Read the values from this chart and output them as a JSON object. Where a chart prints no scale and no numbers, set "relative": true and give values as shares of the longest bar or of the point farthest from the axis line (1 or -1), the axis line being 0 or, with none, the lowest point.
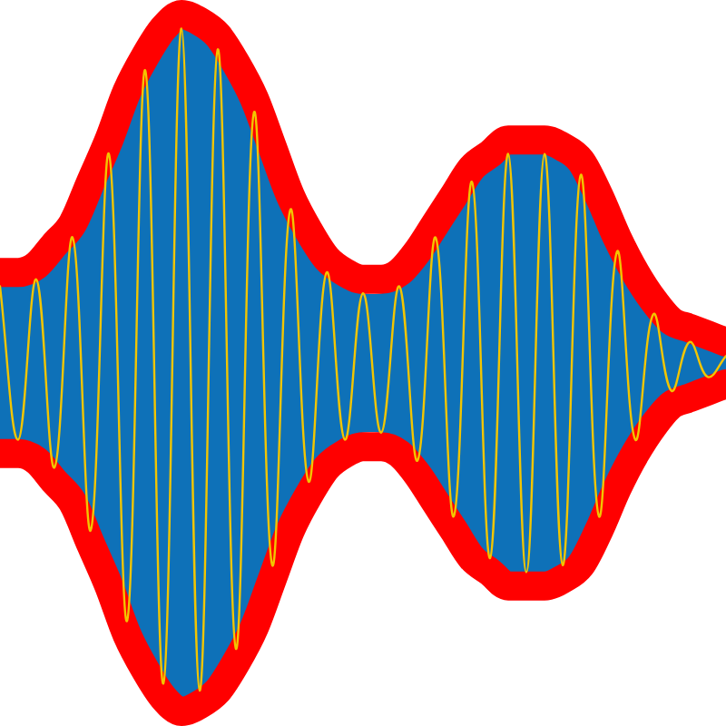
{
  "chart_data": {
    "type": "line",
    "relative": true,
    "categories": [
      null,
      null,
      null,
      null,
      null,
      null,
      null,
      null,
      null,
      null,
      null,
      null,
      null,
      null,
      null,
      null,
      null,
      null,
      null,
      null,
      null,
      null,
      null,
      null,
      null,
      null,
      null,
      null,
      null,
      null,
      null,
      null,
      null,
      null,
      null,
      null,
      null,
      null,
      null,
      null,
      null
    ],
    "series": [
      {
        "color": "#ff0000",
        "values": [
          0.63,
          0.63,
          0.64,
          0.67,
          0.7,
          0.76,
          0.82,
          0.89,
          0.94,
          0.98,
          1.0,
          0.99,
          0.97,
          0.93,
          0.88,
          0.81,
          0.74,
          0.69,
          0.65,
          0.63,
          0.62,
          0.62,
          0.63,
          0.66,
          0.7,
          0.74,
          0.78,
          0.8,
          0.82,
          0.82,
          0.82,
          0.81,
          0.79,
          0.74,
          0.68,
          0.63,
          0.59,
          0.56,
          0.55,
          0.54,
          0.53
        ]
      },
      {
        "color": "#ff0000",
        "values": [
          0.37,
          0.37,
          0.36,
          0.33,
          0.3,
          0.24,
          0.18,
          0.11,
          0.06,
          0.02,
          0.0,
          0.01,
          0.03,
          0.07,
          0.12,
          0.19,
          0.26,
          0.31,
          0.35,
          0.37,
          0.38,
          0.38,
          0.37,
          0.34,
          0.3,
          0.26,
          0.22,
          0.2,
          0.18,
          0.18,
          0.18,
          0.19,
          0.21,
          0.26,
          0.32,
          0.37,
          0.41,
          0.44,
          0.45,
          0.46,
          0.47
        ]
      },
      {
        "color": "#f2c500",
        "values": [
          0.61,
          0.39,
          0.62,
          0.35,
          0.68,
          0.26,
          0.8,
          0.13,
          0.92,
          0.04,
          0.98,
          0.03,
          0.95,
          0.09,
          0.86,
          0.21,
          0.72,
          0.33,
          0.63,
          0.39,
          0.6,
          0.4,
          0.61,
          0.36,
          0.68,
          0.28,
          0.76,
          0.22,
          0.8,
          0.2,
          0.8,
          0.21,
          0.77,
          0.28,
          0.66,
          0.39,
          0.57,
          0.46,
          0.53,
          0.48,
          0.51
        ],
        "upper": [
          0.61,
          0.61,
          0.62,
          0.65,
          0.68,
          0.74,
          0.8,
          0.87,
          0.92,
          0.96,
          0.98,
          0.97,
          0.95,
          0.91,
          0.86,
          0.79,
          0.72,
          0.67,
          0.63,
          0.61,
          0.6,
          0.6,
          0.61,
          0.64,
          0.68,
          0.72,
          0.76,
          0.78,
          0.8,
          0.8,
          0.8,
          0.79,
          0.77,
          0.72,
          0.66,
          0.61,
          0.57,
          0.54,
          0.53,
          0.52,
          0.51
        ],
        "lower": [
          0.39,
          0.39,
          0.38,
          0.35,
          0.32,
          0.26,
          0.2,
          0.13,
          0.08,
          0.04,
          0.02,
          0.03,
          0.05,
          0.09,
          0.14,
          0.21,
          0.28,
          0.33,
          0.37,
          0.39,
          0.4,
          0.4,
          0.39,
          0.36,
          0.32,
          0.28,
          0.24,
          0.22,
          0.2,
          0.2,
          0.2,
          0.21,
          0.23,
          0.28,
          0.34,
          0.39,
          0.43,
          0.46,
          0.47,
          0.48,
          0.49
        ]
      }
    ]
  }
}
